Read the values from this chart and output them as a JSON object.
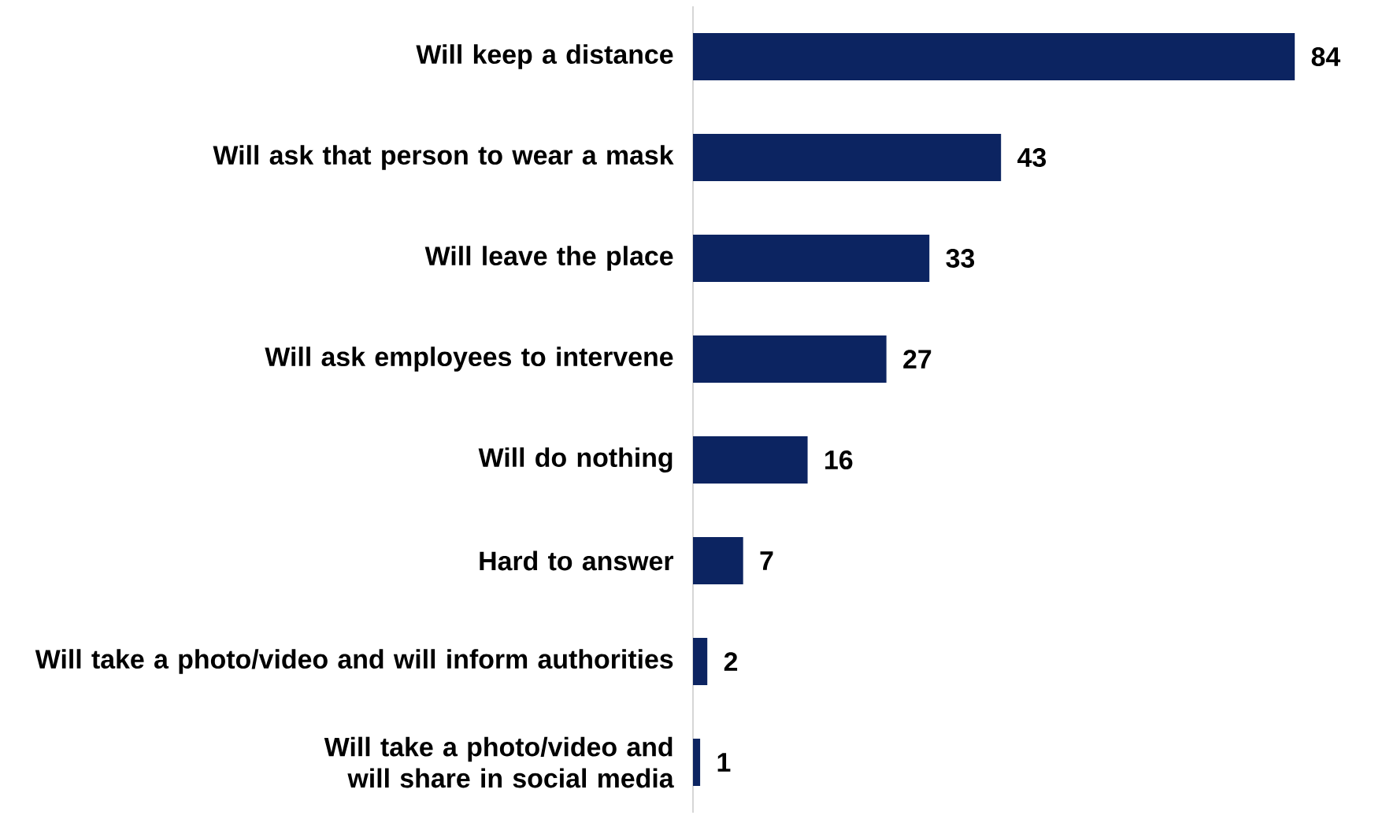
{
  "chart_data": {
    "type": "bar",
    "orientation": "horizontal",
    "categories": [
      "Will keep a distance",
      "Will ask that person to wear a mask",
      "Will leave the place",
      "Will ask employees to intervene",
      "Will do nothing",
      "Hard to answer",
      "Will take a photo/video and will inform authorities",
      "Will take a photo/video and will share in social media"
    ],
    "values": [
      84,
      43,
      33,
      27,
      16,
      7,
      2,
      1
    ],
    "color": "#0c2461",
    "data_labels": true
  }
}
